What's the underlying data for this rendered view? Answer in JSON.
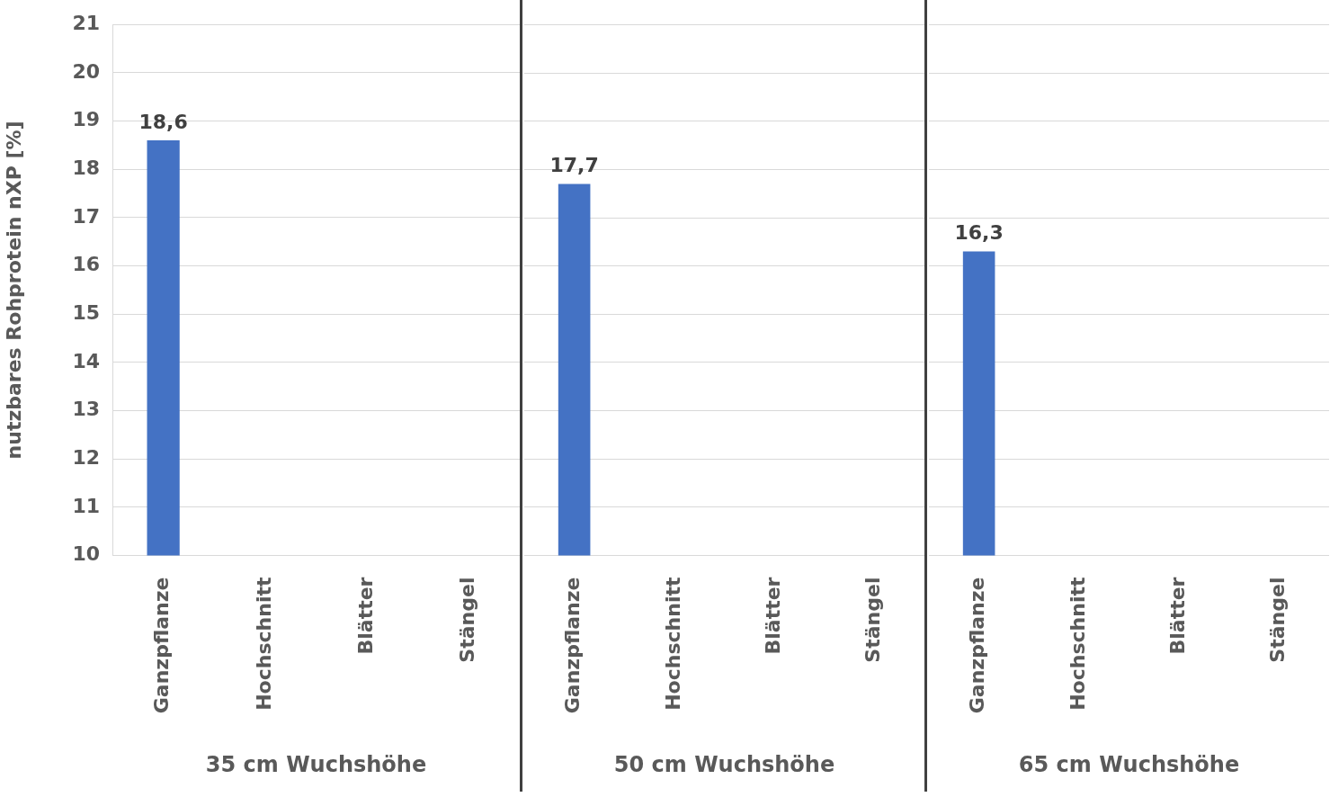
{
  "chart_data": [
    {
      "type": "bar",
      "ylabel": "nutzbares Rohprotein nXP [%]",
      "xlabel": "35 cm Wuchshöhe",
      "categories": [
        "Ganzpflanze",
        "Hochschnitt",
        "Blätter",
        "Stängel"
      ],
      "values": [
        18.6,
        null,
        null,
        null
      ],
      "value_labels": [
        "18,6",
        null,
        null,
        null
      ],
      "color": "#4472c4",
      "ylim": [
        10,
        21
      ],
      "yticks": [
        10,
        11,
        12,
        13,
        14,
        15,
        16,
        17,
        18,
        19,
        20,
        21
      ],
      "grid": "y"
    },
    {
      "type": "bar",
      "xlabel": "50 cm Wuchshöhe",
      "categories": [
        "Ganzpflanze",
        "Hochschnitt",
        "Blätter",
        "Stängel"
      ],
      "values": [
        17.7,
        null,
        null,
        null
      ],
      "value_labels": [
        "17,7",
        null,
        null,
        null
      ],
      "color": "#4472c4",
      "ylim": [
        10,
        21
      ],
      "yticks": [
        10,
        11,
        12,
        13,
        14,
        15,
        16,
        17,
        18,
        19,
        20,
        21
      ],
      "grid": "y",
      "tick_labels": "x"
    },
    {
      "type": "bar",
      "xlabel": "65 cm Wuchshöhe",
      "categories": [
        "Ganzpflanze",
        "Hochschnitt",
        "Blätter",
        "Stängel"
      ],
      "values": [
        16.3,
        null,
        null,
        null
      ],
      "value_labels": [
        "16,3",
        null,
        null,
        null
      ],
      "color": "#4472c4",
      "ylim": [
        10,
        21
      ],
      "yticks": [
        10,
        11,
        12,
        13,
        14,
        15,
        16,
        17,
        18,
        19,
        20,
        21
      ],
      "grid": "y",
      "tick_labels": "x"
    }
  ]
}
